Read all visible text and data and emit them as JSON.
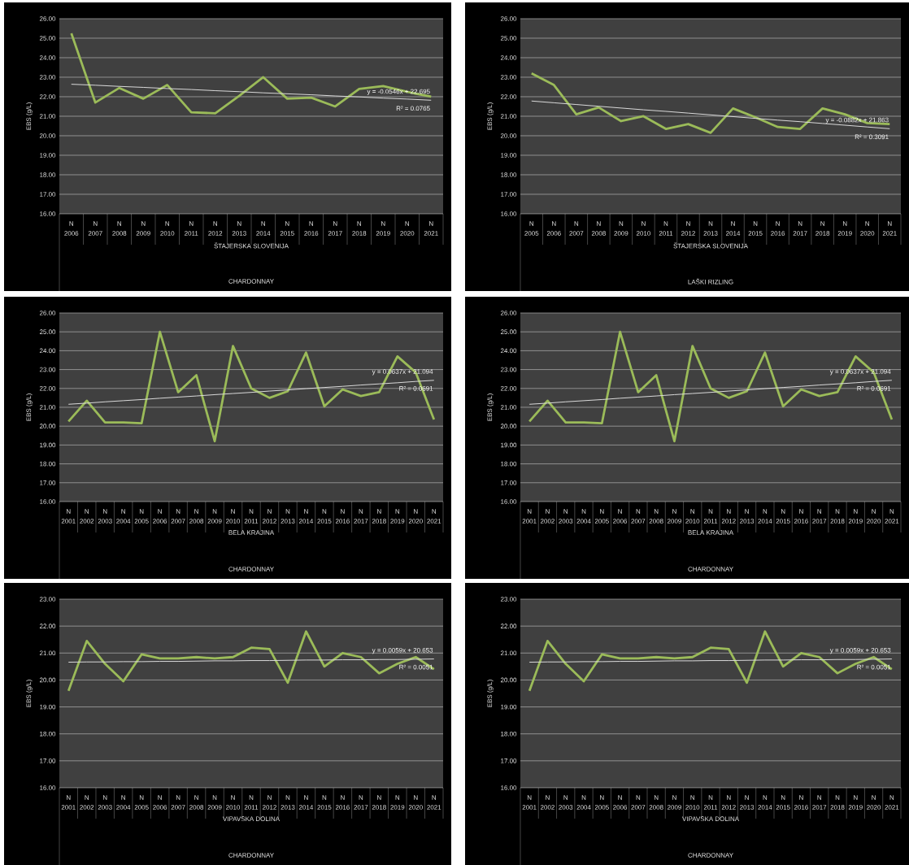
{
  "chart_data": [
    {
      "type": "line",
      "categories": [
        "2006",
        "2007",
        "2008",
        "2009",
        "2010",
        "2011",
        "2012",
        "2013",
        "2014",
        "2015",
        "2016",
        "2017",
        "2018",
        "2019",
        "2020",
        "2021"
      ],
      "series": [
        {
          "color": "#9bbb59",
          "values": [
            25.25,
            21.7,
            22.45,
            21.9,
            22.6,
            21.2,
            21.15,
            22.05,
            23.0,
            21.9,
            21.95,
            21.5,
            22.4,
            22.55,
            22.25,
            22.0
          ]
        },
        {
          "color": "#d9d9d9",
          "values": [
            22.64,
            22.59,
            22.53,
            22.48,
            22.42,
            22.37,
            22.31,
            22.26,
            22.2,
            22.15,
            22.1,
            22.04,
            21.99,
            21.93,
            21.88,
            21.82
          ]
        }
      ],
      "ylim": [
        16,
        26
      ],
      "yticks": [
        {
          "value": 16,
          "label": "16.00"
        },
        {
          "value": 17,
          "label": "17.00"
        },
        {
          "value": 18,
          "label": "18.00"
        },
        {
          "value": 19,
          "label": "19.00"
        },
        {
          "value": 20,
          "label": "20.00"
        },
        {
          "value": 21,
          "label": "21.00"
        },
        {
          "value": 22,
          "label": "22.00"
        },
        {
          "value": 23,
          "label": "23.00"
        },
        {
          "value": 24,
          "label": "24.00"
        },
        {
          "value": 25,
          "label": "25.00"
        },
        {
          "value": 26,
          "label": "26.00"
        }
      ],
      "ylabel": "EBS (g/L)",
      "xlabel": "ŠTAJERSKA SLOVENIJA",
      "grid": "y",
      "annotations": [
        "CHARDONNAY",
        "y = -0.0546x + 22.695",
        "R² = 0.0765",
        "N",
        "N",
        "N",
        "N",
        "N",
        "N",
        "N",
        "N",
        "N",
        "N",
        "N",
        "N",
        "N",
        "N",
        "N",
        "N"
      ]
    },
    {
      "type": "line",
      "categories": [
        "2005",
        "2006",
        "2007",
        "2008",
        "2009",
        "2010",
        "2011",
        "2012",
        "2013",
        "2014",
        "2015",
        "2016",
        "2017",
        "2018",
        "2019",
        "2020",
        "2021"
      ],
      "series": [
        {
          "color": "#9bbb59",
          "values": [
            23.2,
            22.6,
            21.1,
            21.45,
            20.75,
            21.0,
            20.35,
            20.6,
            20.15,
            21.4,
            20.95,
            20.45,
            20.35,
            21.4,
            21.1,
            20.65,
            20.6
          ]
        },
        {
          "color": "#d9d9d9",
          "values": [
            21.78,
            21.69,
            21.6,
            21.51,
            21.42,
            21.33,
            21.25,
            21.16,
            21.07,
            20.98,
            20.89,
            20.8,
            20.72,
            20.63,
            20.54,
            20.45,
            20.36
          ]
        }
      ],
      "ylim": [
        16,
        26
      ],
      "yticks": [
        {
          "value": 16,
          "label": "16.00"
        },
        {
          "value": 17,
          "label": "17.00"
        },
        {
          "value": 18,
          "label": "18.00"
        },
        {
          "value": 19,
          "label": "19.00"
        },
        {
          "value": 20,
          "label": "20.00"
        },
        {
          "value": 21,
          "label": "21.00"
        },
        {
          "value": 22,
          "label": "22.00"
        },
        {
          "value": 23,
          "label": "23.00"
        },
        {
          "value": 24,
          "label": "24.00"
        },
        {
          "value": 25,
          "label": "25.00"
        },
        {
          "value": 26,
          "label": "26.00"
        }
      ],
      "ylabel": "EBS (g/L)",
      "xlabel": "ŠTAJERSKA SLOVENIJA",
      "grid": "y",
      "annotations": [
        "LAŠKI RIZLING",
        "y = -0.0882x + 21.863",
        "R² = 0.3091",
        "N",
        "N",
        "N",
        "N",
        "N",
        "N",
        "N",
        "N",
        "N",
        "N",
        "N",
        "N",
        "N",
        "N",
        "N",
        "N",
        "N"
      ]
    },
    {
      "type": "line",
      "categories": [
        "2001",
        "2002",
        "2003",
        "2004",
        "2005",
        "2006",
        "2007",
        "2008",
        "2009",
        "2010",
        "2011",
        "2012",
        "2013",
        "2014",
        "2015",
        "2016",
        "2017",
        "2018",
        "2019",
        "2020",
        "2021"
      ],
      "series": [
        {
          "color": "#9bbb59",
          "values": [
            20.25,
            21.35,
            20.2,
            20.2,
            20.15,
            25.0,
            21.8,
            22.7,
            19.2,
            24.25,
            22.0,
            21.5,
            21.85,
            23.9,
            21.05,
            21.95,
            21.6,
            21.8,
            23.7,
            22.85,
            20.35
          ]
        },
        {
          "color": "#d9d9d9",
          "values": [
            21.16,
            21.22,
            21.29,
            21.35,
            21.41,
            21.48,
            21.54,
            21.6,
            21.67,
            21.73,
            21.79,
            21.86,
            21.92,
            21.99,
            22.05,
            22.11,
            22.18,
            22.24,
            22.3,
            22.37,
            22.43
          ]
        }
      ],
      "ylim": [
        16,
        26
      ],
      "yticks": [
        {
          "value": 16,
          "label": "16.00"
        },
        {
          "value": 17,
          "label": "17.00"
        },
        {
          "value": 18,
          "label": "18.00"
        },
        {
          "value": 19,
          "label": "19.00"
        },
        {
          "value": 20,
          "label": "20.00"
        },
        {
          "value": 21,
          "label": "21.00"
        },
        {
          "value": 22,
          "label": "22.00"
        },
        {
          "value": 23,
          "label": "23.00"
        },
        {
          "value": 24,
          "label": "24.00"
        },
        {
          "value": 25,
          "label": "25.00"
        },
        {
          "value": 26,
          "label": "26.00"
        }
      ],
      "ylabel": "EBS (g/L)",
      "xlabel": "BELA KRAJINA",
      "grid": "y",
      "annotations": [
        "CHARDONNAY",
        "y = 0.0637x + 21.094",
        "R² = 0.0691",
        "N",
        "N",
        "N",
        "N",
        "N",
        "N",
        "N",
        "N",
        "N",
        "N",
        "N",
        "N",
        "N",
        "N",
        "N",
        "N",
        "N",
        "N",
        "N",
        "N",
        "N"
      ]
    },
    {
      "type": "line",
      "categories": [
        "2001",
        "2002",
        "2003",
        "2004",
        "2005",
        "2006",
        "2007",
        "2008",
        "2009",
        "2010",
        "2011",
        "2012",
        "2013",
        "2014",
        "2015",
        "2016",
        "2017",
        "2018",
        "2019",
        "2020",
        "2021"
      ],
      "series": [
        {
          "color": "#9bbb59",
          "values": [
            20.25,
            21.35,
            20.2,
            20.2,
            20.15,
            25.0,
            21.8,
            22.7,
            19.2,
            24.25,
            22.0,
            21.5,
            21.85,
            23.9,
            21.05,
            21.95,
            21.6,
            21.8,
            23.7,
            22.85,
            20.35
          ]
        },
        {
          "color": "#d9d9d9",
          "values": [
            21.16,
            21.22,
            21.29,
            21.35,
            21.41,
            21.48,
            21.54,
            21.6,
            21.67,
            21.73,
            21.79,
            21.86,
            21.92,
            21.99,
            22.05,
            22.11,
            22.18,
            22.24,
            22.3,
            22.37,
            22.43
          ]
        }
      ],
      "ylim": [
        16,
        26
      ],
      "yticks": [
        {
          "value": 16,
          "label": "16.00"
        },
        {
          "value": 17,
          "label": "17.00"
        },
        {
          "value": 18,
          "label": "18.00"
        },
        {
          "value": 19,
          "label": "19.00"
        },
        {
          "value": 20,
          "label": "20.00"
        },
        {
          "value": 21,
          "label": "21.00"
        },
        {
          "value": 22,
          "label": "22.00"
        },
        {
          "value": 23,
          "label": "23.00"
        },
        {
          "value": 24,
          "label": "24.00"
        },
        {
          "value": 25,
          "label": "25.00"
        },
        {
          "value": 26,
          "label": "26.00"
        }
      ],
      "ylabel": "EBS (g/L)",
      "xlabel": "BELA KRAJINA",
      "grid": "y",
      "annotations": [
        "CHARDONNAY",
        "y = 0.0637x + 21.094",
        "R² = 0.0691",
        "N",
        "N",
        "N",
        "N",
        "N",
        "N",
        "N",
        "N",
        "N",
        "N",
        "N",
        "N",
        "N",
        "N",
        "N",
        "N",
        "N",
        "N",
        "N",
        "N",
        "N"
      ]
    },
    {
      "type": "line",
      "categories": [
        "2001",
        "2002",
        "2003",
        "2004",
        "2005",
        "2006",
        "2007",
        "2008",
        "2009",
        "2010",
        "2011",
        "2012",
        "2013",
        "2014",
        "2015",
        "2016",
        "2017",
        "2018",
        "2019",
        "2020",
        "2021"
      ],
      "series": [
        {
          "color": "#9bbb59",
          "values": [
            19.6,
            21.45,
            20.6,
            19.95,
            20.95,
            20.8,
            20.8,
            20.85,
            20.8,
            20.85,
            21.2,
            21.15,
            19.9,
            21.8,
            20.5,
            21.0,
            20.85,
            20.25,
            20.6,
            20.85,
            20.4
          ]
        },
        {
          "color": "#d9d9d9",
          "values": [
            20.66,
            20.67,
            20.67,
            20.68,
            20.68,
            20.69,
            20.69,
            20.7,
            20.71,
            20.71,
            20.72,
            20.72,
            20.73,
            20.74,
            20.74,
            20.75,
            20.75,
            20.76,
            20.76,
            20.77,
            20.78
          ]
        }
      ],
      "ylim": [
        16,
        23
      ],
      "yticks": [
        {
          "value": 16,
          "label": "16.00"
        },
        {
          "value": 17,
          "label": "17.00"
        },
        {
          "value": 18,
          "label": "18.00"
        },
        {
          "value": 19,
          "label": "19.00"
        },
        {
          "value": 20,
          "label": "20.00"
        },
        {
          "value": 21,
          "label": "21.00"
        },
        {
          "value": 22,
          "label": "22.00"
        },
        {
          "value": 23,
          "label": "23.00"
        }
      ],
      "ylabel": "EBS (g/L)",
      "xlabel": "VIPAVSKA DOLINA",
      "grid": "y",
      "annotations": [
        "CHARDONNAY",
        "y = 0.0059x + 20.653",
        "R² = 0.0051",
        "N",
        "N",
        "N",
        "N",
        "N",
        "N",
        "N",
        "N",
        "N",
        "N",
        "N",
        "N",
        "N",
        "N",
        "N",
        "N",
        "N",
        "N",
        "N",
        "N",
        "N"
      ]
    },
    {
      "type": "line",
      "categories": [
        "2001",
        "2002",
        "2003",
        "2004",
        "2005",
        "2006",
        "2007",
        "2008",
        "2009",
        "2010",
        "2011",
        "2012",
        "2013",
        "2014",
        "2015",
        "2016",
        "2017",
        "2018",
        "2019",
        "2020",
        "2021"
      ],
      "series": [
        {
          "color": "#9bbb59",
          "values": [
            19.6,
            21.45,
            20.6,
            19.95,
            20.95,
            20.8,
            20.8,
            20.85,
            20.8,
            20.85,
            21.2,
            21.15,
            19.9,
            21.8,
            20.5,
            21.0,
            20.85,
            20.25,
            20.6,
            20.85,
            20.4
          ]
        },
        {
          "color": "#d9d9d9",
          "values": [
            20.66,
            20.67,
            20.67,
            20.68,
            20.68,
            20.69,
            20.69,
            20.7,
            20.71,
            20.71,
            20.72,
            20.72,
            20.73,
            20.74,
            20.74,
            20.75,
            20.75,
            20.76,
            20.76,
            20.77,
            20.78
          ]
        }
      ],
      "ylim": [
        16,
        23
      ],
      "yticks": [
        {
          "value": 16,
          "label": "16.00"
        },
        {
          "value": 17,
          "label": "17.00"
        },
        {
          "value": 18,
          "label": "18.00"
        },
        {
          "value": 19,
          "label": "19.00"
        },
        {
          "value": 20,
          "label": "20.00"
        },
        {
          "value": 21,
          "label": "21.00"
        },
        {
          "value": 22,
          "label": "22.00"
        },
        {
          "value": 23,
          "label": "23.00"
        }
      ],
      "ylabel": "EBS (g/L)",
      "xlabel": "VIPAVSKA DOLINA",
      "grid": "y",
      "annotations": [
        "CHARDONNAY",
        "y = 0.0059x + 20.653",
        "R² = 0.0051",
        "N",
        "N",
        "N",
        "N",
        "N",
        "N",
        "N",
        "N",
        "N",
        "N",
        "N",
        "N",
        "N",
        "N",
        "N",
        "N",
        "N",
        "N",
        "N",
        "N",
        "N"
      ]
    }
  ]
}
